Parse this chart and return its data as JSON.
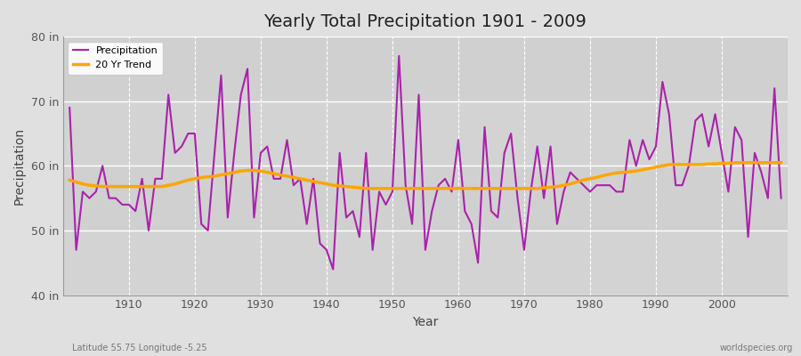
{
  "title": "Yearly Total Precipitation 1901 - 2009",
  "xlabel": "Year",
  "ylabel": "Precipitation",
  "subtitle_left": "Latitude 55.75 Longitude -5.25",
  "subtitle_right": "worldspecies.org",
  "ylim": [
    40,
    80
  ],
  "ytick_labels": [
    "40 in",
    "50 in",
    "60 in",
    "70 in",
    "80 in"
  ],
  "ytick_values": [
    40,
    50,
    60,
    70,
    80
  ],
  "fig_bg_color": "#e0e0e0",
  "plot_bg_color": "#d8d8d8",
  "precip_color": "#aa22aa",
  "trend_color": "#ffa500",
  "precip_label": "Precipitation",
  "trend_label": "20 Yr Trend",
  "years": [
    1901,
    1902,
    1903,
    1904,
    1905,
    1906,
    1907,
    1908,
    1909,
    1910,
    1911,
    1912,
    1913,
    1914,
    1915,
    1916,
    1917,
    1918,
    1919,
    1920,
    1921,
    1922,
    1923,
    1924,
    1925,
    1926,
    1927,
    1928,
    1929,
    1930,
    1931,
    1932,
    1933,
    1934,
    1935,
    1936,
    1937,
    1938,
    1939,
    1940,
    1941,
    1942,
    1943,
    1944,
    1945,
    1946,
    1947,
    1948,
    1949,
    1950,
    1951,
    1952,
    1953,
    1954,
    1955,
    1956,
    1957,
    1958,
    1959,
    1960,
    1961,
    1962,
    1963,
    1964,
    1965,
    1966,
    1967,
    1968,
    1969,
    1970,
    1971,
    1972,
    1973,
    1974,
    1975,
    1976,
    1977,
    1978,
    1979,
    1980,
    1981,
    1982,
    1983,
    1984,
    1985,
    1986,
    1987,
    1988,
    1989,
    1990,
    1991,
    1992,
    1993,
    1994,
    1995,
    1996,
    1997,
    1998,
    1999,
    2000,
    2001,
    2002,
    2003,
    2004,
    2005,
    2006,
    2007,
    2008,
    2009
  ],
  "precip": [
    69,
    47,
    56,
    55,
    56,
    60,
    55,
    55,
    54,
    54,
    53,
    58,
    50,
    58,
    58,
    71,
    62,
    63,
    65,
    65,
    51,
    50,
    62,
    74,
    52,
    62,
    71,
    75,
    52,
    62,
    63,
    58,
    58,
    64,
    57,
    58,
    51,
    58,
    48,
    47,
    44,
    62,
    52,
    53,
    49,
    62,
    47,
    56,
    54,
    56,
    77,
    57,
    51,
    71,
    47,
    53,
    57,
    58,
    56,
    64,
    53,
    51,
    45,
    66,
    53,
    52,
    62,
    65,
    55,
    47,
    56,
    63,
    55,
    63,
    51,
    56,
    59,
    58,
    57,
    56,
    57,
    57,
    57,
    56,
    56,
    64,
    60,
    64,
    61,
    63,
    73,
    68,
    57,
    57,
    60,
    67,
    68,
    63,
    68,
    62,
    56,
    66,
    64,
    49,
    62,
    59,
    55,
    72,
    55
  ],
  "trend": [
    57.8,
    57.5,
    57.2,
    57.0,
    56.9,
    56.8,
    56.8,
    56.8,
    56.8,
    56.8,
    56.8,
    56.8,
    56.8,
    56.8,
    56.8,
    57.0,
    57.2,
    57.5,
    57.8,
    58.0,
    58.2,
    58.3,
    58.4,
    58.6,
    58.8,
    59.0,
    59.2,
    59.3,
    59.3,
    59.2,
    59.0,
    58.8,
    58.6,
    58.4,
    58.2,
    58.0,
    57.8,
    57.6,
    57.4,
    57.2,
    57.0,
    56.9,
    56.8,
    56.7,
    56.6,
    56.5,
    56.5,
    56.5,
    56.5,
    56.5,
    56.5,
    56.5,
    56.5,
    56.5,
    56.5,
    56.5,
    56.5,
    56.5,
    56.5,
    56.5,
    56.5,
    56.5,
    56.5,
    56.5,
    56.5,
    56.5,
    56.5,
    56.5,
    56.5,
    56.5,
    56.5,
    56.5,
    56.6,
    56.7,
    56.8,
    57.0,
    57.2,
    57.5,
    57.8,
    58.0,
    58.2,
    58.5,
    58.7,
    58.9,
    59.0,
    59.1,
    59.2,
    59.4,
    59.6,
    59.8,
    60.0,
    60.2,
    60.2,
    60.2,
    60.2,
    60.2,
    60.2,
    60.3,
    60.3,
    60.4,
    60.4,
    60.5,
    60.5,
    60.5,
    60.5,
    60.5,
    60.5,
    60.5,
    60.5
  ]
}
